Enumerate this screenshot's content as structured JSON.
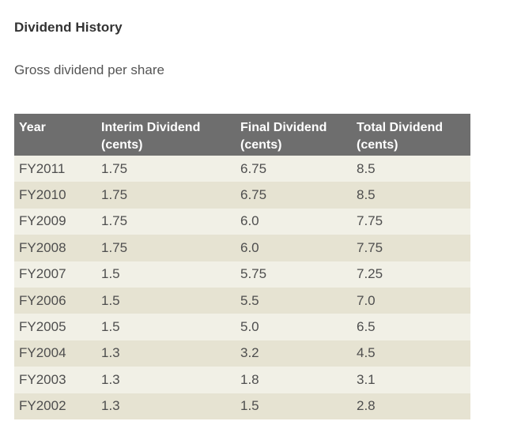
{
  "title": "Dividend History",
  "subtitle": "Gross dividend per share",
  "table": {
    "headers": [
      [
        "Year"
      ],
      [
        "Interim Dividend",
        "(cents)"
      ],
      [
        "Final Dividend",
        "(cents)"
      ],
      [
        "Total Dividend",
        "(cents)"
      ]
    ],
    "rows": [
      [
        "FY2011",
        "1.75",
        "6.75",
        "8.5"
      ],
      [
        "FY2010",
        "1.75",
        "6.75",
        "8.5"
      ],
      [
        "FY2009",
        "1.75",
        "6.0",
        "7.75"
      ],
      [
        "FY2008",
        "1.75",
        "6.0",
        "7.75"
      ],
      [
        "FY2007",
        "1.5",
        "5.75",
        "7.25"
      ],
      [
        "FY2006",
        "1.5",
        "5.5",
        "7.0"
      ],
      [
        "FY2005",
        "1.5",
        "5.0",
        "6.5"
      ],
      [
        "FY2004",
        "1.3",
        "3.2",
        "4.5"
      ],
      [
        "FY2003",
        "1.3",
        "1.8",
        "3.1"
      ],
      [
        "FY2002",
        "1.3",
        "1.5",
        "2.8"
      ]
    ]
  },
  "colors": {
    "header_background": "#6e6e6e",
    "row_light": "#f1f0e6",
    "row_dark": "#e6e3d2"
  }
}
